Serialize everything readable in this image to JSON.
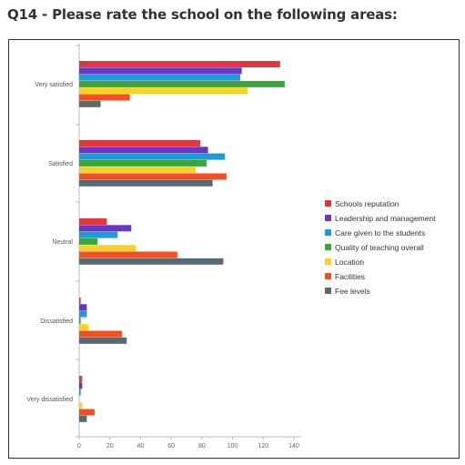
{
  "header": {
    "title": "Q14 - Please rate the school on the following areas:"
  },
  "chart_data": {
    "type": "bar",
    "orientation": "horizontal",
    "categories": [
      "Very satisfied",
      "Satisfied",
      "Neutral",
      "Dissatisfied",
      "Very dissatisfied"
    ],
    "series": [
      {
        "name": "Schools reputation",
        "color": "#e0383e",
        "values": [
          131,
          79,
          18,
          1,
          2
        ]
      },
      {
        "name": "Leadership and management",
        "color": "#6b35c4",
        "values": [
          106,
          84,
          34,
          5,
          2
        ]
      },
      {
        "name": "Care given to the students",
        "color": "#1f9ad6",
        "values": [
          105,
          95,
          25,
          5,
          1
        ]
      },
      {
        "name": "Quality of teaching overall",
        "color": "#3aa53a",
        "values": [
          134,
          83,
          12,
          1,
          0
        ]
      },
      {
        "name": "Location",
        "color": "#f5d327",
        "values": [
          110,
          76,
          37,
          6,
          2
        ]
      },
      {
        "name": "Facilities",
        "color": "#f25022",
        "values": [
          33,
          96,
          64,
          28,
          10
        ]
      },
      {
        "name": "Fee levels",
        "color": "#566b73",
        "values": [
          14,
          87,
          94,
          31,
          5
        ]
      }
    ],
    "xlim": [
      0,
      140
    ],
    "xticks": [
      0,
      20,
      40,
      60,
      80,
      100,
      120,
      140
    ],
    "grid": false,
    "legend": "right"
  }
}
